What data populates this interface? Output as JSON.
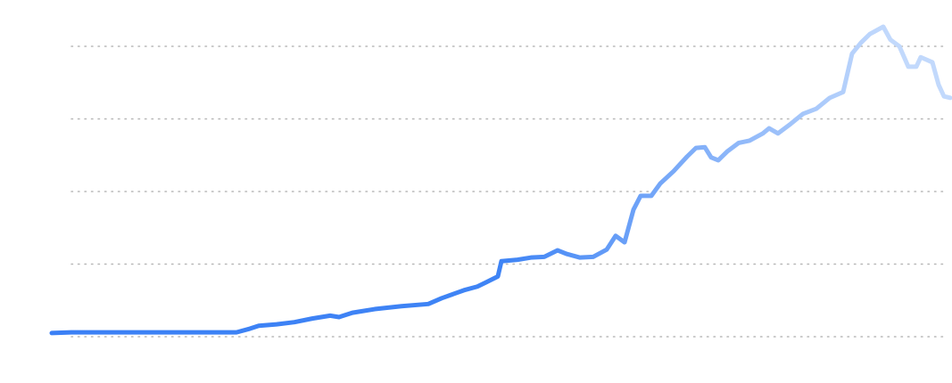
{
  "chart_data": {
    "type": "line",
    "x": [
      0,
      22,
      62,
      102,
      142,
      182,
      207,
      222,
      232,
      252,
      272,
      292,
      312,
      322,
      337,
      362,
      392,
      422,
      437,
      462,
      477,
      487,
      500,
      504,
      522,
      537,
      552,
      567,
      577,
      592,
      607,
      622,
      632,
      642,
      652,
      660,
      672,
      682,
      697,
      712,
      722,
      732,
      739,
      747,
      757,
      770,
      782,
      797,
      804,
      814,
      827,
      842,
      857,
      872,
      887,
      897,
      907,
      917,
      932,
      940,
      950,
      960,
      969,
      974,
      987,
      994,
      1000,
      1007
    ],
    "values": [
      0.05,
      0.06,
      0.06,
      0.06,
      0.06,
      0.06,
      0.06,
      0.11,
      0.15,
      0.17,
      0.2,
      0.25,
      0.29,
      0.27,
      0.33,
      0.38,
      0.42,
      0.45,
      0.53,
      0.64,
      0.69,
      0.75,
      0.83,
      1.04,
      1.06,
      1.09,
      1.1,
      1.19,
      1.14,
      1.09,
      1.1,
      1.2,
      1.39,
      1.3,
      1.75,
      1.94,
      1.94,
      2.11,
      2.28,
      2.48,
      2.6,
      2.61,
      2.47,
      2.43,
      2.55,
      2.67,
      2.7,
      2.8,
      2.87,
      2.8,
      2.92,
      3.07,
      3.14,
      3.29,
      3.37,
      3.9,
      4.05,
      4.17,
      4.27,
      4.09,
      4.0,
      3.72,
      3.72,
      3.85,
      3.78,
      3.47,
      3.31,
      3.29
    ],
    "colors": [
      "#3b80f5",
      "#3f84f5",
      "#c2d9fc"
    ],
    "xlim": [
      0,
      1007
    ],
    "ylim": [
      -0.5,
      4.5
    ],
    "yticks": [
      0,
      1,
      2,
      3,
      4
    ],
    "grid": true
  }
}
